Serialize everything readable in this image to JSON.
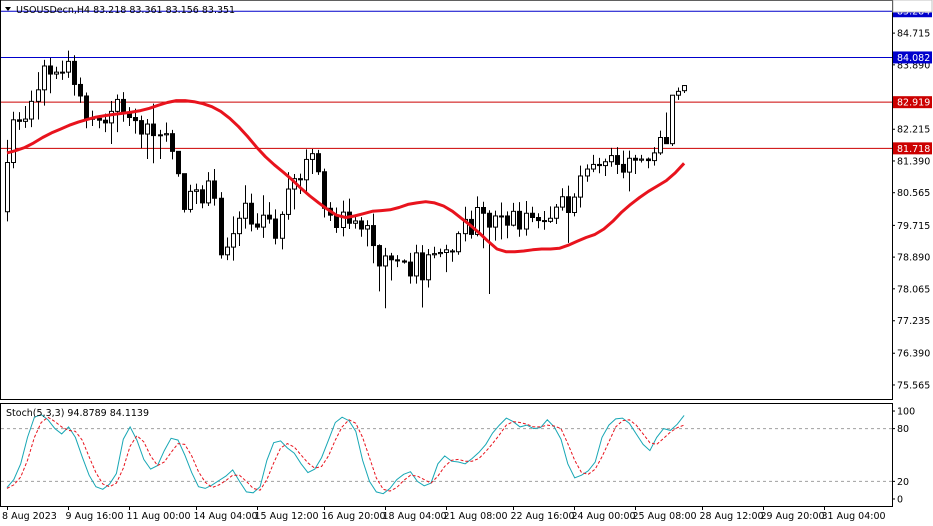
{
  "symbol_header": "USOUSDecn,H4  83.218 83.361 83.156 83.351",
  "indicator_header": "Stoch(5,3,3) 94.8789 84.1139",
  "colors": {
    "background": "#ffffff",
    "candle_up_body": "#ffffff",
    "candle_down_body": "#000000",
    "candle_outline": "#000000",
    "ma_line": "#e8131d",
    "blue_level": "#0000cc",
    "red_level": "#cc0000",
    "stoch_main": "#18a7b5",
    "stoch_signal": "#e8131d",
    "level_dash": "#a0a0a0"
  },
  "chart_data": [
    {
      "type": "candlestick",
      "title": "USOUSDecn,H4",
      "ohlc_current": {
        "open": 83.218,
        "high": 83.361,
        "low": 83.156,
        "close": 83.351
      },
      "ylim": [
        75.2,
        85.55
      ],
      "y_ticks": [
        "85.284",
        "84.715",
        "84.082",
        "83.890",
        "83.351",
        "82.919",
        "82.215",
        "81.718",
        "81.390",
        "80.565",
        "79.715",
        "78.890",
        "78.065",
        "77.235",
        "76.390",
        "75.565"
      ],
      "x_ticks": [
        "8 Aug 2023",
        "9 Aug 16:00",
        "11 Aug 00:00",
        "14 Aug 04:00",
        "15 Aug 12:00",
        "16 Aug 20:00",
        "18 Aug 04:00",
        "21 Aug 08:00",
        "22 Aug 16:00",
        "24 Aug 00:00",
        "25 Aug 08:00",
        "28 Aug 12:00",
        "29 Aug 20:00",
        "31 Aug 04:00"
      ],
      "horizontal_levels": [
        {
          "price": 85.284,
          "label": "85.284",
          "color": "#0000cc"
        },
        {
          "price": 84.082,
          "label": "84.082",
          "color": "#0000cc"
        },
        {
          "price": 82.919,
          "label": "82.919",
          "color": "#cc0000"
        },
        {
          "price": 81.718,
          "label": "81.718",
          "color": "#cc0000"
        }
      ],
      "current_price_label": "83.351",
      "ma_close": [
        81.6,
        81.66,
        81.74,
        81.86,
        82.0,
        82.12,
        82.22,
        82.32,
        82.4,
        82.47,
        82.53,
        82.57,
        82.6,
        82.63,
        82.66,
        82.7,
        82.76,
        82.84,
        82.91,
        82.96,
        82.96,
        82.93,
        82.88,
        82.8,
        82.68,
        82.5,
        82.28,
        82.03,
        81.75,
        81.5,
        81.29,
        81.1,
        80.9,
        80.68,
        80.48,
        80.3,
        80.13,
        79.98,
        79.92,
        79.96,
        80.02,
        80.08,
        80.1,
        80.12,
        80.18,
        80.26,
        80.3,
        80.33,
        80.3,
        80.22,
        80.08,
        79.9,
        79.72,
        79.52,
        79.3,
        79.1,
        79.03,
        79.03,
        79.05,
        79.08,
        79.1,
        79.1,
        79.12,
        79.2,
        79.3,
        79.4,
        79.48,
        79.62,
        79.82,
        80.06,
        80.26,
        80.44,
        80.6,
        80.74,
        80.88,
        81.08,
        81.33
      ],
      "candles": [
        {
          "o": 80.07,
          "h": 81.94,
          "l": 79.82,
          "c": 81.35
        },
        {
          "o": 81.35,
          "h": 82.67,
          "l": 81.2,
          "c": 82.46
        },
        {
          "o": 82.46,
          "h": 82.66,
          "l": 82.2,
          "c": 82.42
        },
        {
          "o": 82.42,
          "h": 82.82,
          "l": 82.25,
          "c": 82.48
        },
        {
          "o": 82.48,
          "h": 83.22,
          "l": 82.27,
          "c": 82.94
        },
        {
          "o": 82.94,
          "h": 83.7,
          "l": 82.47,
          "c": 83.24
        },
        {
          "o": 83.24,
          "h": 84.02,
          "l": 82.83,
          "c": 83.86
        },
        {
          "o": 83.86,
          "h": 84.07,
          "l": 83.15,
          "c": 83.65
        },
        {
          "o": 83.65,
          "h": 83.84,
          "l": 83.52,
          "c": 83.7
        },
        {
          "o": 83.7,
          "h": 84.0,
          "l": 83.5,
          "c": 83.7
        },
        {
          "o": 83.7,
          "h": 84.26,
          "l": 83.55,
          "c": 83.98
        },
        {
          "o": 83.98,
          "h": 84.14,
          "l": 83.09,
          "c": 83.38
        },
        {
          "o": 83.38,
          "h": 83.56,
          "l": 82.9,
          "c": 83.08
        },
        {
          "o": 83.08,
          "h": 83.17,
          "l": 82.24,
          "c": 82.48
        },
        {
          "o": 82.48,
          "h": 82.7,
          "l": 82.3,
          "c": 82.5
        },
        {
          "o": 82.5,
          "h": 82.58,
          "l": 82.24,
          "c": 82.45
        },
        {
          "o": 82.45,
          "h": 82.62,
          "l": 82.14,
          "c": 82.38
        },
        {
          "o": 82.38,
          "h": 82.95,
          "l": 81.83,
          "c": 82.68
        },
        {
          "o": 82.68,
          "h": 83.12,
          "l": 82.14,
          "c": 82.99
        },
        {
          "o": 82.99,
          "h": 83.18,
          "l": 82.41,
          "c": 82.63
        },
        {
          "o": 82.63,
          "h": 82.79,
          "l": 82.3,
          "c": 82.52
        },
        {
          "o": 82.52,
          "h": 82.75,
          "l": 82.1,
          "c": 82.44
        },
        {
          "o": 82.44,
          "h": 82.57,
          "l": 81.72,
          "c": 82.09
        },
        {
          "o": 82.09,
          "h": 82.48,
          "l": 81.44,
          "c": 82.35
        },
        {
          "o": 82.35,
          "h": 82.88,
          "l": 81.33,
          "c": 82.05
        },
        {
          "o": 82.05,
          "h": 82.2,
          "l": 81.44,
          "c": 82.07
        },
        {
          "o": 82.07,
          "h": 82.39,
          "l": 81.89,
          "c": 82.1
        },
        {
          "o": 82.1,
          "h": 82.2,
          "l": 81.43,
          "c": 81.64
        },
        {
          "o": 81.64,
          "h": 81.65,
          "l": 80.98,
          "c": 81.06
        },
        {
          "o": 81.06,
          "h": 81.06,
          "l": 80.05,
          "c": 80.13
        },
        {
          "o": 80.13,
          "h": 80.77,
          "l": 80.05,
          "c": 80.6
        },
        {
          "o": 80.6,
          "h": 80.8,
          "l": 80.27,
          "c": 80.64
        },
        {
          "o": 80.64,
          "h": 80.76,
          "l": 80.16,
          "c": 80.3
        },
        {
          "o": 80.3,
          "h": 81.1,
          "l": 80.22,
          "c": 80.87
        },
        {
          "o": 80.87,
          "h": 81.18,
          "l": 80.23,
          "c": 80.42
        },
        {
          "o": 80.42,
          "h": 80.58,
          "l": 78.85,
          "c": 78.95
        },
        {
          "o": 78.95,
          "h": 79.4,
          "l": 78.81,
          "c": 79.15
        },
        {
          "o": 79.15,
          "h": 79.95,
          "l": 78.8,
          "c": 79.5
        },
        {
          "o": 79.5,
          "h": 80.08,
          "l": 79.18,
          "c": 79.9
        },
        {
          "o": 79.9,
          "h": 80.76,
          "l": 79.63,
          "c": 80.29
        },
        {
          "o": 80.29,
          "h": 80.54,
          "l": 79.56,
          "c": 79.75
        },
        {
          "o": 79.75,
          "h": 80.03,
          "l": 79.6,
          "c": 79.67
        },
        {
          "o": 79.67,
          "h": 80.5,
          "l": 79.39,
          "c": 79.98
        },
        {
          "o": 79.98,
          "h": 80.32,
          "l": 79.76,
          "c": 79.88
        },
        {
          "o": 79.88,
          "h": 80.13,
          "l": 79.22,
          "c": 79.38
        },
        {
          "o": 79.38,
          "h": 80.08,
          "l": 79.09,
          "c": 80.0
        },
        {
          "o": 80.0,
          "h": 81.1,
          "l": 79.86,
          "c": 80.66
        },
        {
          "o": 80.66,
          "h": 81.05,
          "l": 80.13,
          "c": 80.93
        },
        {
          "o": 80.93,
          "h": 81.06,
          "l": 80.53,
          "c": 80.9
        },
        {
          "o": 80.9,
          "h": 81.69,
          "l": 80.57,
          "c": 81.43
        },
        {
          "o": 81.43,
          "h": 81.7,
          "l": 81.05,
          "c": 81.58
        },
        {
          "o": 81.58,
          "h": 81.68,
          "l": 81.03,
          "c": 81.11
        },
        {
          "o": 81.11,
          "h": 81.19,
          "l": 79.92,
          "c": 80.16
        },
        {
          "o": 80.16,
          "h": 80.32,
          "l": 79.83,
          "c": 79.98
        },
        {
          "o": 79.98,
          "h": 80.18,
          "l": 79.52,
          "c": 79.66
        },
        {
          "o": 79.66,
          "h": 80.36,
          "l": 79.43,
          "c": 80.06
        },
        {
          "o": 80.06,
          "h": 80.41,
          "l": 79.62,
          "c": 79.77
        },
        {
          "o": 79.77,
          "h": 79.94,
          "l": 79.63,
          "c": 79.83
        },
        {
          "o": 79.83,
          "h": 79.93,
          "l": 79.42,
          "c": 79.62
        },
        {
          "o": 79.62,
          "h": 79.85,
          "l": 79.17,
          "c": 79.71
        },
        {
          "o": 79.71,
          "h": 80.02,
          "l": 78.73,
          "c": 79.19
        },
        {
          "o": 79.19,
          "h": 79.22,
          "l": 78.0,
          "c": 78.66
        },
        {
          "o": 78.66,
          "h": 79.13,
          "l": 77.56,
          "c": 78.92
        },
        {
          "o": 78.92,
          "h": 79.0,
          "l": 78.28,
          "c": 78.82
        },
        {
          "o": 78.82,
          "h": 78.94,
          "l": 78.63,
          "c": 78.79
        },
        {
          "o": 78.79,
          "h": 78.83,
          "l": 78.72,
          "c": 78.76
        },
        {
          "o": 78.76,
          "h": 79.0,
          "l": 78.2,
          "c": 78.4
        },
        {
          "o": 78.4,
          "h": 79.21,
          "l": 78.2,
          "c": 79.0
        },
        {
          "o": 79.0,
          "h": 79.2,
          "l": 77.58,
          "c": 78.3
        },
        {
          "o": 78.3,
          "h": 79.1,
          "l": 78.1,
          "c": 78.95
        },
        {
          "o": 78.95,
          "h": 79.16,
          "l": 78.86,
          "c": 78.98
        },
        {
          "o": 78.98,
          "h": 79.11,
          "l": 78.89,
          "c": 79.01
        },
        {
          "o": 79.01,
          "h": 79.21,
          "l": 78.5,
          "c": 79.08
        }
      ],
      "candles_right": [
        {
          "o": 79.05,
          "h": 79.1,
          "l": 78.77,
          "c": 79.03
        },
        {
          "o": 79.03,
          "h": 79.56,
          "l": 78.95,
          "c": 79.5
        },
        {
          "o": 79.5,
          "h": 80.2,
          "l": 79.3,
          "c": 79.87
        },
        {
          "o": 79.87,
          "h": 80.1,
          "l": 79.37,
          "c": 79.48
        },
        {
          "o": 79.48,
          "h": 80.47,
          "l": 79.43,
          "c": 80.18
        },
        {
          "o": 80.18,
          "h": 80.33,
          "l": 79.12,
          "c": 80.03
        },
        {
          "o": 80.03,
          "h": 80.11,
          "l": 77.93,
          "c": 79.67
        },
        {
          "o": 79.67,
          "h": 80.1,
          "l": 79.32,
          "c": 79.96
        },
        {
          "o": 79.96,
          "h": 80.31,
          "l": 79.35,
          "c": 79.96
        },
        {
          "o": 79.96,
          "h": 80.08,
          "l": 79.38,
          "c": 79.72
        },
        {
          "o": 79.72,
          "h": 80.3,
          "l": 79.69,
          "c": 80.08
        },
        {
          "o": 80.08,
          "h": 80.32,
          "l": 79.42,
          "c": 79.62
        },
        {
          "o": 79.62,
          "h": 80.35,
          "l": 79.45,
          "c": 80.03
        },
        {
          "o": 80.03,
          "h": 80.2,
          "l": 79.8,
          "c": 79.92
        },
        {
          "o": 79.92,
          "h": 80.03,
          "l": 79.64,
          "c": 79.84
        },
        {
          "o": 79.84,
          "h": 80.09,
          "l": 79.6,
          "c": 79.82
        },
        {
          "o": 79.82,
          "h": 80.21,
          "l": 79.78,
          "c": 79.9
        },
        {
          "o": 79.9,
          "h": 80.27,
          "l": 79.75,
          "c": 80.19
        },
        {
          "o": 80.19,
          "h": 80.68,
          "l": 80.1,
          "c": 80.46
        },
        {
          "o": 80.46,
          "h": 80.75,
          "l": 79.26,
          "c": 80.05
        },
        {
          "o": 80.05,
          "h": 80.55,
          "l": 79.95,
          "c": 80.45
        },
        {
          "o": 80.45,
          "h": 81.27,
          "l": 80.18,
          "c": 81.0
        },
        {
          "o": 81.0,
          "h": 81.3,
          "l": 80.85,
          "c": 81.18
        },
        {
          "o": 81.18,
          "h": 81.55,
          "l": 81.1,
          "c": 81.3
        },
        {
          "o": 81.3,
          "h": 81.47,
          "l": 81.07,
          "c": 81.27
        },
        {
          "o": 81.27,
          "h": 81.45,
          "l": 81.0,
          "c": 81.37
        },
        {
          "o": 81.37,
          "h": 81.73,
          "l": 81.24,
          "c": 81.53
        },
        {
          "o": 81.53,
          "h": 81.75,
          "l": 81.05,
          "c": 81.3
        },
        {
          "o": 81.3,
          "h": 81.66,
          "l": 80.94,
          "c": 81.1
        },
        {
          "o": 81.1,
          "h": 81.66,
          "l": 80.6,
          "c": 81.46
        },
        {
          "o": 81.46,
          "h": 81.55,
          "l": 81.05,
          "c": 81.41
        },
        {
          "o": 81.41,
          "h": 81.55,
          "l": 81.35,
          "c": 81.44
        },
        {
          "o": 81.44,
          "h": 81.48,
          "l": 81.2,
          "c": 81.4
        },
        {
          "o": 81.4,
          "h": 81.75,
          "l": 81.27,
          "c": 81.6
        },
        {
          "o": 81.6,
          "h": 82.18,
          "l": 81.55,
          "c": 82.0
        },
        {
          "o": 82.0,
          "h": 82.65,
          "l": 81.83,
          "c": 81.84
        },
        {
          "o": 81.84,
          "h": 83.1,
          "l": 81.78,
          "c": 83.1
        },
        {
          "o": 83.1,
          "h": 83.3,
          "l": 82.98,
          "c": 83.2
        },
        {
          "o": 83.218,
          "h": 83.361,
          "l": 83.156,
          "c": 83.351
        }
      ]
    },
    {
      "type": "line",
      "title": "Stoch(5,3,3) 94.8789 84.1139",
      "ylim": [
        -8,
        108
      ],
      "y_ticks": [
        "100",
        "80",
        "20",
        "0"
      ],
      "levels": [
        80,
        20
      ],
      "series": [
        {
          "role": "main",
          "values": [
            13,
            22,
            40,
            70,
            93,
            96,
            90,
            80,
            74,
            82,
            70,
            48,
            27,
            14,
            11,
            17,
            29,
            68,
            82,
            67,
            45,
            34,
            38,
            55,
            69,
            67,
            50,
            30,
            14,
            12,
            16,
            21,
            26,
            33,
            20,
            8,
            7,
            14,
            44,
            64,
            66,
            58,
            52,
            40,
            30,
            34,
            47,
            67,
            87,
            93,
            89,
            77,
            44,
            20,
            8,
            6,
            12,
            22,
            28,
            31,
            20,
            15,
            18,
            40,
            49,
            43,
            42,
            40,
            46,
            53,
            62,
            75,
            84,
            92,
            88,
            82,
            84,
            80,
            81,
            90,
            82,
            68,
            40,
            24,
            27,
            32,
            42,
            70,
            84,
            91,
            92,
            86,
            74,
            62,
            55,
            70,
            80,
            78,
            85,
            95
          ]
        },
        {
          "role": "signal",
          "values": [
            12,
            16,
            25,
            44,
            70,
            87,
            93,
            88,
            82,
            78,
            77,
            67,
            48,
            30,
            17,
            14,
            18,
            35,
            60,
            72,
            65,
            49,
            38,
            42,
            53,
            63,
            62,
            49,
            31,
            19,
            13,
            16,
            21,
            27,
            27,
            20,
            12,
            10,
            22,
            41,
            58,
            63,
            59,
            50,
            41,
            35,
            37,
            49,
            67,
            82,
            90,
            86,
            70,
            47,
            24,
            11,
            9,
            13,
            21,
            27,
            26,
            22,
            18,
            26,
            37,
            44,
            45,
            43,
            43,
            46,
            54,
            63,
            73,
            84,
            88,
            87,
            85,
            82,
            82,
            84,
            83,
            80,
            63,
            44,
            30,
            28,
            34,
            48,
            65,
            82,
            89,
            90,
            84,
            74,
            64,
            62,
            69,
            76,
            81,
            84
          ]
        }
      ]
    }
  ]
}
